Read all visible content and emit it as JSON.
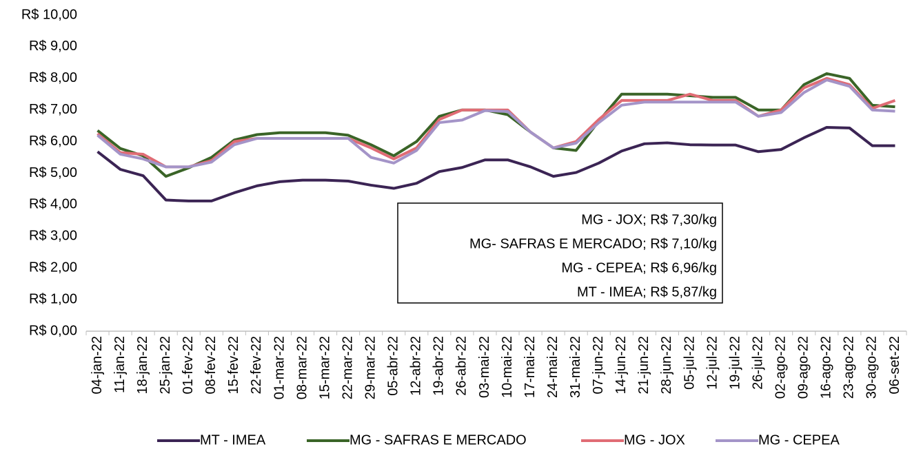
{
  "chart_data": {
    "type": "line",
    "categories": [
      "04-jan-22",
      "11-jan-22",
      "18-jan-22",
      "25-jan-22",
      "01-fev-22",
      "08-fev-22",
      "15-fev-22",
      "22-fev-22",
      "01-mar-22",
      "08-mar-22",
      "15-mar-22",
      "22-mar-22",
      "29-mar-22",
      "05-abr-22",
      "12-abr-22",
      "19-abr-22",
      "26-abr-22",
      "03-mai-22",
      "10-mai-22",
      "17-mai-22",
      "24-mai-22",
      "31-mai-22",
      "07-jun-22",
      "14-jun-22",
      "21-jun-22",
      "28-jun-22",
      "05-jul-22",
      "12-jul-22",
      "19-jul-22",
      "26-jul-22",
      "02-ago-22",
      "09-ago-22",
      "16-ago-22",
      "23-ago-22",
      "30-ago-22",
      "06-set-22"
    ],
    "series": [
      {
        "name": "MT - IMEA",
        "color": "#3b2454",
        "values": [
          5.68,
          5.12,
          4.92,
          4.15,
          4.12,
          4.12,
          4.38,
          4.6,
          4.73,
          4.78,
          4.78,
          4.75,
          4.62,
          4.52,
          4.68,
          5.05,
          5.18,
          5.42,
          5.42,
          5.2,
          4.9,
          5.02,
          5.32,
          5.7,
          5.93,
          5.96,
          5.9,
          5.89,
          5.89,
          5.68,
          5.75,
          6.12,
          6.45,
          6.43,
          5.87,
          5.87
        ]
      },
      {
        "name": "MG - SAFRAS E MERCADO",
        "color": "#3a6427",
        "values": [
          6.35,
          5.78,
          5.55,
          4.9,
          5.17,
          5.5,
          6.05,
          6.22,
          6.28,
          6.28,
          6.28,
          6.2,
          5.9,
          5.55,
          6.0,
          6.8,
          7.0,
          7.0,
          6.85,
          6.3,
          5.8,
          5.72,
          6.65,
          7.5,
          7.5,
          7.5,
          7.45,
          7.4,
          7.4,
          7.0,
          7.0,
          7.8,
          8.15,
          8.0,
          7.15,
          7.1
        ]
      },
      {
        "name": "MG - JOX",
        "color": "#e06c75",
        "values": [
          6.25,
          5.65,
          5.6,
          5.2,
          5.2,
          5.4,
          6.0,
          6.1,
          6.1,
          6.1,
          6.1,
          6.1,
          5.8,
          5.45,
          5.8,
          6.7,
          7.0,
          7.0,
          7.0,
          6.3,
          5.8,
          6.0,
          6.7,
          7.3,
          7.3,
          7.3,
          7.5,
          7.3,
          7.3,
          6.8,
          7.0,
          7.7,
          8.0,
          7.8,
          7.05,
          7.3
        ]
      },
      {
        "name": "MG - CEPEA",
        "color": "#a494c8",
        "values": [
          6.2,
          5.6,
          5.45,
          5.2,
          5.2,
          5.35,
          5.9,
          6.1,
          6.1,
          6.1,
          6.1,
          6.1,
          5.5,
          5.32,
          5.72,
          6.6,
          6.68,
          6.98,
          6.95,
          6.3,
          5.8,
          5.95,
          6.6,
          7.15,
          7.25,
          7.25,
          7.25,
          7.25,
          7.25,
          6.8,
          6.92,
          7.55,
          7.95,
          7.75,
          7.0,
          6.96
        ]
      }
    ],
    "ylim": [
      0,
      10
    ],
    "yticks": [
      {
        "value": 0,
        "label": "R$ 0,00"
      },
      {
        "value": 1,
        "label": "R$ 1,00"
      },
      {
        "value": 2,
        "label": "R$ 2,00"
      },
      {
        "value": 3,
        "label": "R$ 3,00"
      },
      {
        "value": 4,
        "label": "R$ 4,00"
      },
      {
        "value": 5,
        "label": "R$ 5,00"
      },
      {
        "value": 6,
        "label": "R$ 6,00"
      },
      {
        "value": 7,
        "label": "R$ 7,00"
      },
      {
        "value": 8,
        "label": "R$ 8,00"
      },
      {
        "value": 9,
        "label": "R$ 9,00"
      },
      {
        "value": 10,
        "label": "R$ 10,00"
      }
    ],
    "annotations": [
      "MG - JOX; R$ 7,30/kg",
      "MG- SAFRAS E MERCADO; R$ 7,10/kg",
      "MG - CEPEA; R$ 6,96/kg",
      "MT - IMEA; R$ 5,87/kg"
    ],
    "legend": "bottom"
  }
}
